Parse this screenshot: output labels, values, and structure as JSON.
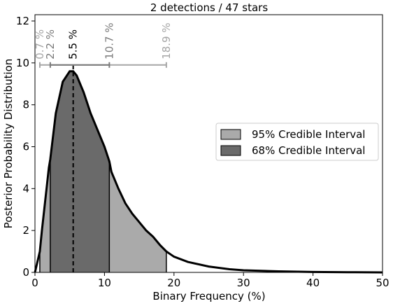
{
  "chart_data": {
    "type": "area",
    "title": "2 detections / 47 stars",
    "xlabel": "Binary Frequency (%)",
    "ylabel": "Posterior Probability Distribution",
    "xlim": [
      0,
      50
    ],
    "ylim": [
      0,
      12.3
    ],
    "x_ticks": [
      0,
      10,
      20,
      30,
      40,
      50
    ],
    "y_ticks": [
      0,
      2,
      4,
      6,
      8,
      10,
      12
    ],
    "grid": false,
    "legend_position": "center-right",
    "series": [
      {
        "name": "Posterior Probability Distribution",
        "x": [
          0,
          0.7,
          1,
          2,
          2.2,
          3,
          4,
          5,
          5.5,
          6,
          7,
          8,
          9,
          10,
          10.7,
          11,
          12,
          13,
          14,
          15,
          16,
          17,
          18,
          18.9,
          20,
          22,
          25,
          28,
          30,
          35,
          40,
          45,
          50
        ],
        "y": [
          0,
          1.0,
          2.0,
          5.0,
          5.4,
          7.6,
          9.1,
          9.6,
          9.6,
          9.4,
          8.6,
          7.6,
          6.8,
          6.0,
          5.3,
          4.8,
          4.0,
          3.3,
          2.8,
          2.4,
          2.0,
          1.7,
          1.3,
          1.0,
          0.75,
          0.5,
          0.28,
          0.15,
          0.1,
          0.05,
          0.02,
          0.01,
          0.0
        ]
      }
    ],
    "intervals": [
      {
        "name": "95% Credible Interval",
        "low": 0.7,
        "high": 18.9,
        "color": "#aaaaaa"
      },
      {
        "name": "68% Credible Interval",
        "low": 2.2,
        "high": 10.7,
        "color": "#6a6a6a"
      }
    ],
    "median": 5.5,
    "annotations": {
      "low95": "0.7 %",
      "low68": "2.2 %",
      "median": "5.5 %",
      "high68": "10.7 %",
      "high95": "18.9 %"
    },
    "interval_bar_y": 9.9,
    "colors": {
      "light_interval": "#aaaaaa",
      "dark_interval": "#6a6a6a",
      "curve": "#000000",
      "label_light": "#a6a6a6",
      "label_dark": "#7a7a7a"
    }
  }
}
